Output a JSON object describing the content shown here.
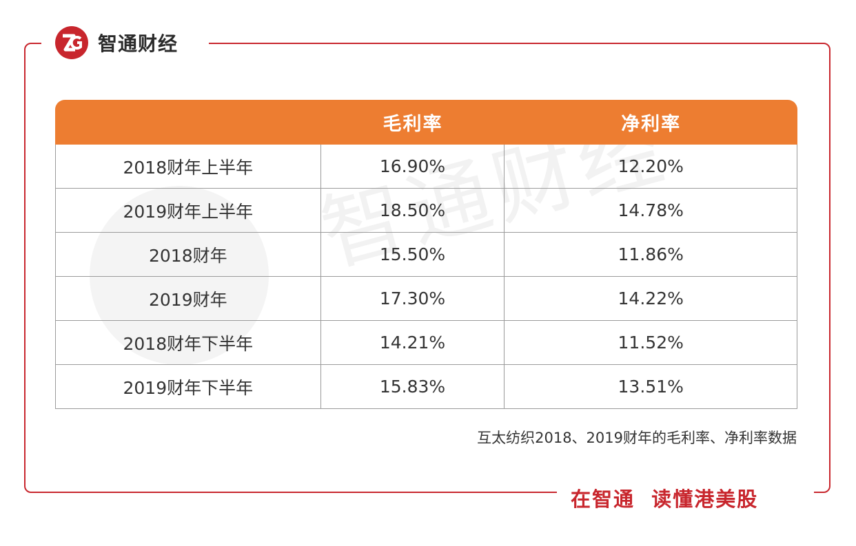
{
  "brand": {
    "name": "智通财经"
  },
  "table": {
    "headers": [
      "",
      "毛利率",
      "净利率"
    ],
    "rows": [
      [
        "2018财年上半年",
        "16.90%",
        "12.20%"
      ],
      [
        "2019财年上半年",
        "18.50%",
        "14.78%"
      ],
      [
        "2018财年",
        "15.50%",
        "11.86%"
      ],
      [
        "2019财年",
        "17.30%",
        "14.22%"
      ],
      [
        "2018财年下半年",
        "14.21%",
        "11.52%"
      ],
      [
        "2019财年下半年",
        "15.83%",
        "13.51%"
      ]
    ]
  },
  "caption": "互太纺织2018、2019财年的毛利率、净利率数据",
  "slogan": "在智通  读懂港美股",
  "colors": {
    "accent": "#c8262d",
    "header": "#ed7d31"
  }
}
